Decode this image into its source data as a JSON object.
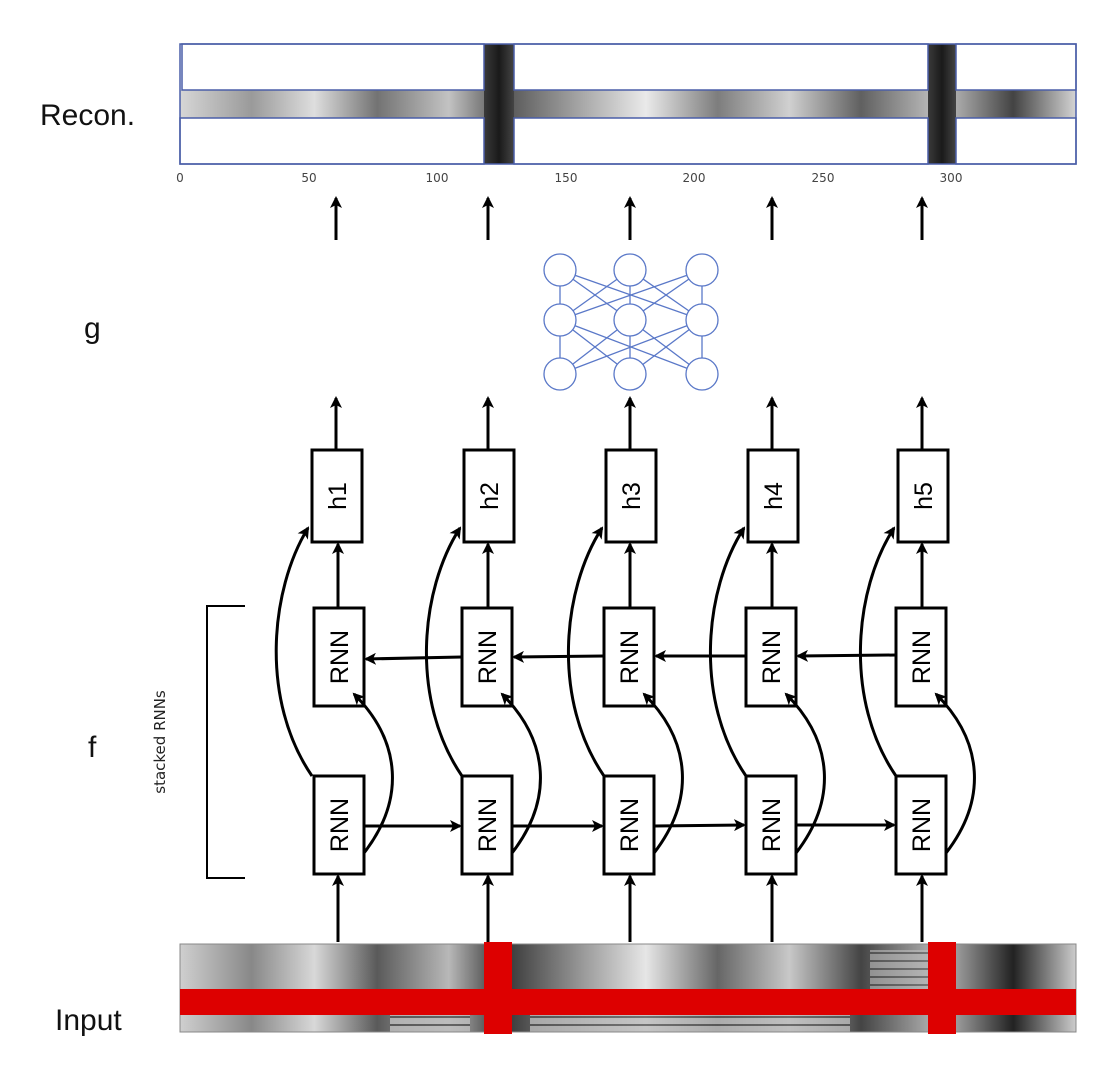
{
  "labels": {
    "recon": "Recon.",
    "g": "g",
    "f": "f",
    "input": "Input",
    "bracket": "stacked RNNs"
  },
  "axis": {
    "ticks": [
      "0",
      "50",
      "100",
      "150",
      "200",
      "250",
      "300"
    ]
  },
  "rnn_label": "RNN",
  "hidden": [
    "h1",
    "h2",
    "h3",
    "h4",
    "h5"
  ],
  "colors": {
    "mask": "#dd0000",
    "frame": "#4a5ea8",
    "network": "#5a78c8",
    "ink": "#000000"
  },
  "icons": {
    "g_network": "fully-connected-network-icon"
  }
}
